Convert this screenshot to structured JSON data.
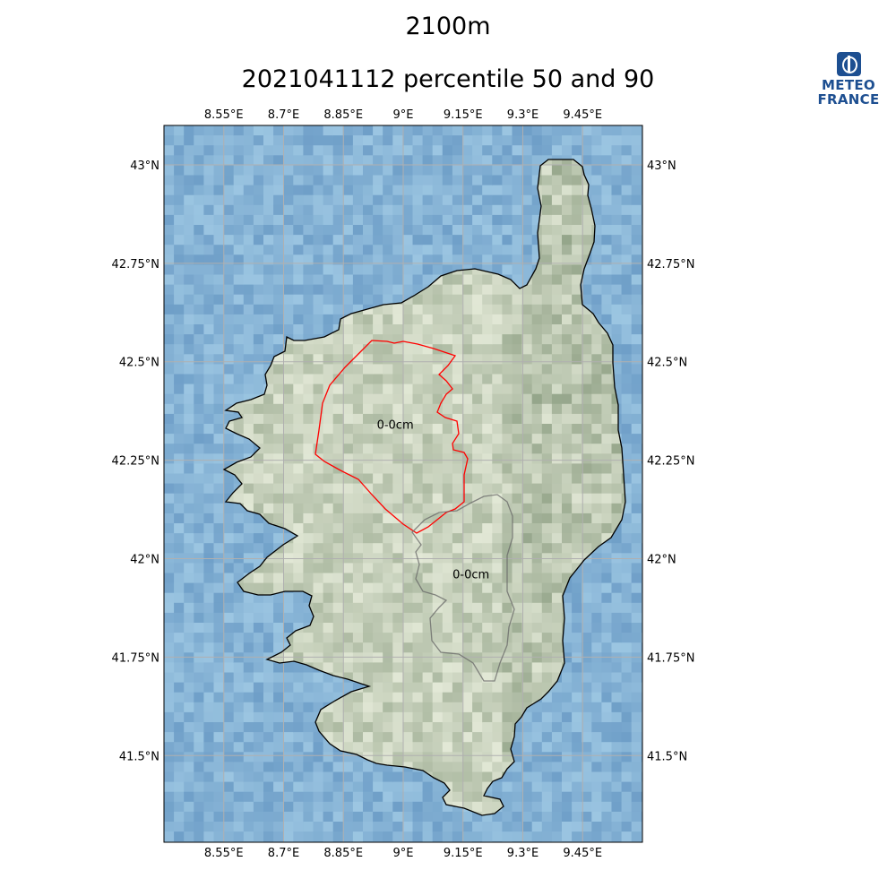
{
  "title_line1": "2100m",
  "title_line2": "2021041112 percentile 50 and 90",
  "logo": {
    "line1": "METEO",
    "line2": "FRANCE",
    "color": "#1d4f91"
  },
  "map": {
    "longitudes": [
      {
        "value": 8.55,
        "label": "8.55°E"
      },
      {
        "value": 8.7,
        "label": "8.7°E"
      },
      {
        "value": 8.85,
        "label": "8.85°E"
      },
      {
        "value": 9.0,
        "label": "9°E"
      },
      {
        "value": 9.15,
        "label": "9.15°E"
      },
      {
        "value": 9.3,
        "label": "9.3°E"
      },
      {
        "value": 9.45,
        "label": "9.45°E"
      }
    ],
    "latitudes": [
      {
        "value": 43.0,
        "label": "43°N"
      },
      {
        "value": 42.75,
        "label": "42.75°N"
      },
      {
        "value": 42.5,
        "label": "42.5°N"
      },
      {
        "value": 42.25,
        "label": "42.25°N"
      },
      {
        "value": 42.0,
        "label": "42°N"
      },
      {
        "value": 41.75,
        "label": "41.75°N"
      },
      {
        "value": 41.5,
        "label": "41.5°N"
      }
    ],
    "extent": {
      "lon_min": 8.4,
      "lon_max": 9.6,
      "lat_min": 41.28,
      "lat_max": 43.1
    },
    "contours": [
      {
        "name": "percentile 50",
        "color": "#ff0000",
        "label": "0-0cm",
        "label_lon": 8.98,
        "label_lat": 42.33
      },
      {
        "name": "percentile 90",
        "color": "#666666",
        "label": "0-0cm",
        "label_lon": 9.17,
        "label_lat": 41.95
      }
    ],
    "colors": {
      "sea": "#7fb2d8",
      "land_light": "#e2e8d6",
      "land_dark": "#8a9c80",
      "grid": "#b0b0b0",
      "coast": "#000000"
    }
  }
}
